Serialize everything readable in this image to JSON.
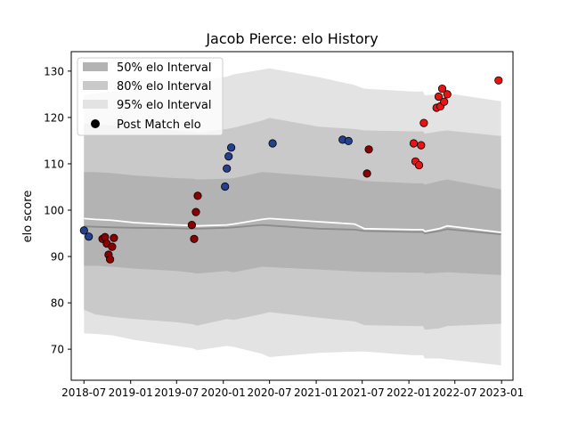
{
  "chart_data": {
    "type": "area",
    "title": "Jacob Pierce: elo History",
    "xlabel": "",
    "ylabel": "elo score",
    "xlim": [
      "2018-05-12",
      "2023-02-15"
    ],
    "ylim": [
      63.3,
      134.2
    ],
    "x_ticks": [
      "2018-07",
      "2019-01",
      "2019-07",
      "2020-01",
      "2020-07",
      "2021-01",
      "2021-07",
      "2022-01",
      "2022-07",
      "2023-01"
    ],
    "y_ticks": [
      70,
      80,
      90,
      100,
      110,
      120,
      130
    ],
    "legend": {
      "position": "upper-left",
      "entries": [
        "50% elo Interval",
        "80% elo Interval",
        "95% elo Interval",
        "Post Match elo"
      ]
    },
    "colors": {
      "band_50": "#b3b3b3",
      "band_80": "#c9c9c9",
      "band_95": "#e3e3e3",
      "mean_line": "#8c8c8c",
      "median_line": "#ffffff",
      "early_points": "#24418f",
      "mid_points": "#8b0000",
      "late_points": "#ee1111"
    },
    "intervals": {
      "x": [
        "2018-07-01",
        "2018-08-15",
        "2018-10-20",
        "2019-01-15",
        "2019-07-01",
        "2019-09-01",
        "2019-09-20",
        "2020-01-15",
        "2020-02-10",
        "2020-06-01",
        "2020-07-01",
        "2021-01-10",
        "2021-06-01",
        "2021-07-10",
        "2022-01-15",
        "2022-02-25",
        "2022-03-05",
        "2022-05-01",
        "2022-06-01",
        "2022-12-30"
      ],
      "mean": [
        96.5,
        96.4,
        96.3,
        96.2,
        96.1,
        96.0,
        96.0,
        96.2,
        96.3,
        96.8,
        96.7,
        96.0,
        95.8,
        95.5,
        95.3,
        95.3,
        95.0,
        95.5,
        95.9,
        94.8
      ],
      "median": [
        98.2,
        98.0,
        97.8,
        97.3,
        96.8,
        96.7,
        96.6,
        96.8,
        97.0,
        98.0,
        98.2,
        97.5,
        97.0,
        96.0,
        95.8,
        95.8,
        95.4,
        96.0,
        96.6,
        95.2
      ],
      "p50_lo": [
        88.0,
        88.0,
        87.8,
        87.4,
        86.9,
        86.5,
        86.3,
        86.9,
        86.6,
        87.8,
        87.7,
        87.2,
        86.8,
        86.7,
        86.5,
        86.5,
        86.3,
        86.5,
        86.6,
        86.0
      ],
      "p50_hi": [
        108.2,
        108.2,
        108.0,
        107.5,
        106.9,
        106.8,
        106.6,
        106.8,
        106.9,
        108.2,
        108.1,
        107.3,
        106.7,
        106.3,
        105.8,
        105.8,
        105.5,
        106.3,
        106.6,
        104.5
      ],
      "p80_lo": [
        78.5,
        77.5,
        77.0,
        76.5,
        75.8,
        75.4,
        75.1,
        76.5,
        76.3,
        77.6,
        78.0,
        76.8,
        76.0,
        75.2,
        75.0,
        75.0,
        74.2,
        74.5,
        75.0,
        75.5
      ],
      "p80_hi": [
        118.7,
        118.5,
        118.3,
        118.0,
        117.2,
        117.0,
        116.7,
        117.5,
        117.8,
        119.3,
        119.9,
        118.0,
        117.5,
        117.2,
        117.0,
        117.0,
        116.5,
        117.0,
        117.2,
        116.0
      ],
      "p95_lo": [
        73.4,
        73.3,
        73.0,
        72.0,
        70.7,
        70.2,
        69.8,
        70.7,
        70.5,
        69.0,
        68.3,
        69.2,
        69.5,
        69.5,
        68.7,
        68.7,
        68.0,
        68.0,
        67.8,
        66.5
      ],
      "p95_hi": [
        124.8,
        125.2,
        125.6,
        126.3,
        127.0,
        127.5,
        127.8,
        128.8,
        129.3,
        130.3,
        130.6,
        128.7,
        127.0,
        126.2,
        125.6,
        125.6,
        124.8,
        125.0,
        125.2,
        123.5
      ]
    },
    "series": [
      {
        "name": "Post Match elo",
        "points": [
          {
            "x": "2018-07-01",
            "y": 95.6,
            "group": "early"
          },
          {
            "x": "2018-07-20",
            "y": 94.3,
            "group": "early"
          },
          {
            "x": "2018-09-12",
            "y": 93.8,
            "group": "mid"
          },
          {
            "x": "2018-09-22",
            "y": 94.2,
            "group": "mid"
          },
          {
            "x": "2018-09-29",
            "y": 92.8,
            "group": "mid"
          },
          {
            "x": "2018-10-06",
            "y": 90.4,
            "group": "mid"
          },
          {
            "x": "2018-10-12",
            "y": 89.4,
            "group": "mid"
          },
          {
            "x": "2018-10-20",
            "y": 92.1,
            "group": "mid"
          },
          {
            "x": "2018-10-27",
            "y": 94.0,
            "group": "mid"
          },
          {
            "x": "2019-08-30",
            "y": 96.8,
            "group": "mid"
          },
          {
            "x": "2019-09-08",
            "y": 93.8,
            "group": "mid"
          },
          {
            "x": "2019-09-15",
            "y": 99.6,
            "group": "mid"
          },
          {
            "x": "2019-09-22",
            "y": 103.1,
            "group": "mid"
          },
          {
            "x": "2020-01-08",
            "y": 105.1,
            "group": "early"
          },
          {
            "x": "2020-01-15",
            "y": 109.0,
            "group": "early"
          },
          {
            "x": "2020-01-22",
            "y": 111.6,
            "group": "early"
          },
          {
            "x": "2020-02-01",
            "y": 113.5,
            "group": "early"
          },
          {
            "x": "2020-07-13",
            "y": 114.4,
            "group": "early"
          },
          {
            "x": "2021-04-15",
            "y": 115.2,
            "group": "early"
          },
          {
            "x": "2021-05-08",
            "y": 114.9,
            "group": "early"
          },
          {
            "x": "2021-07-20",
            "y": 107.9,
            "group": "mid"
          },
          {
            "x": "2021-07-27",
            "y": 113.1,
            "group": "mid"
          },
          {
            "x": "2022-01-20",
            "y": 114.4,
            "group": "late"
          },
          {
            "x": "2022-01-27",
            "y": 110.5,
            "group": "late"
          },
          {
            "x": "2022-02-10",
            "y": 109.7,
            "group": "late"
          },
          {
            "x": "2022-02-18",
            "y": 114.0,
            "group": "late"
          },
          {
            "x": "2022-03-01",
            "y": 118.8,
            "group": "late"
          },
          {
            "x": "2022-04-20",
            "y": 122.1,
            "group": "late"
          },
          {
            "x": "2022-04-28",
            "y": 124.5,
            "group": "late"
          },
          {
            "x": "2022-05-05",
            "y": 122.4,
            "group": "late"
          },
          {
            "x": "2022-05-12",
            "y": 126.2,
            "group": "late"
          },
          {
            "x": "2022-05-20",
            "y": 123.4,
            "group": "late"
          },
          {
            "x": "2022-06-01",
            "y": 125.0,
            "group": "late"
          },
          {
            "x": "2022-12-20",
            "y": 128.0,
            "group": "late"
          }
        ]
      }
    ],
    "grid": false
  }
}
